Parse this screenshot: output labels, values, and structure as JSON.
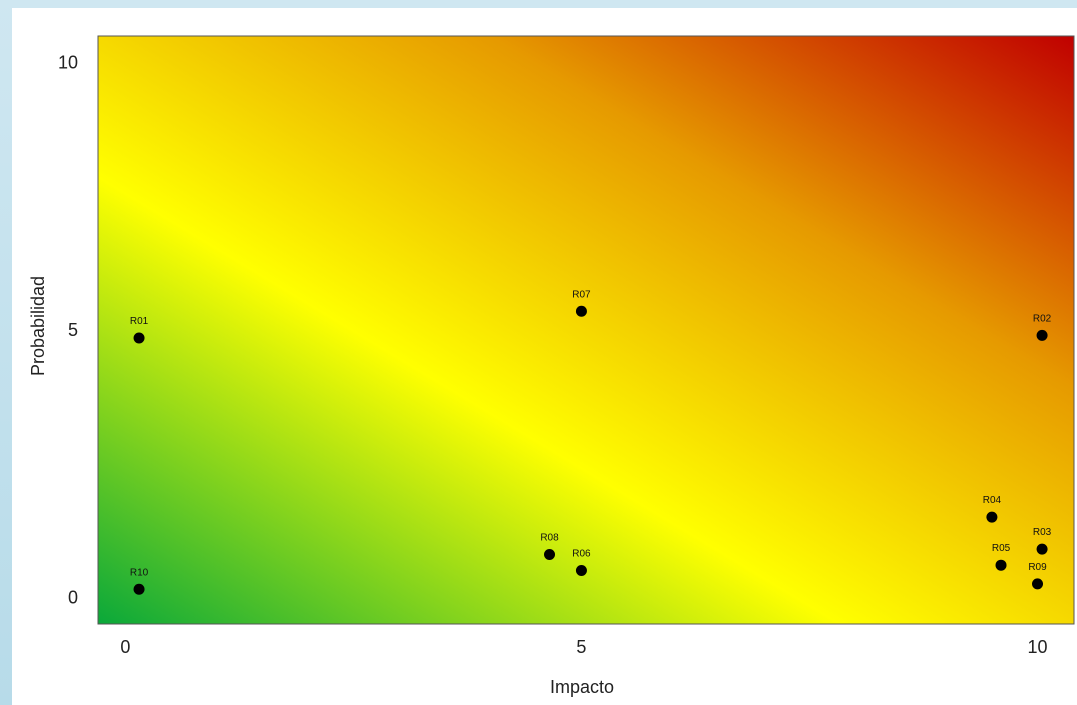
{
  "chart_data": {
    "type": "scatter",
    "title": "",
    "xlabel": "Impacto",
    "ylabel": "Probabilidad",
    "xlim": [
      -0.3,
      10.4
    ],
    "ylim": [
      -0.5,
      10.5
    ],
    "xticks": [
      0,
      5,
      10
    ],
    "yticks": [
      0,
      5,
      10
    ],
    "grid": false,
    "background_gradient": {
      "direction": "bottom-left to top-right",
      "stops": [
        "#0aa83a",
        "#ffff00",
        "#e69a00",
        "#c00000"
      ]
    },
    "point_color": "#000000",
    "points": [
      {
        "label": "R01",
        "x": 0.15,
        "y": 4.85
      },
      {
        "label": "R02",
        "x": 10.05,
        "y": 4.9
      },
      {
        "label": "R03",
        "x": 10.05,
        "y": 0.9
      },
      {
        "label": "R04",
        "x": 9.5,
        "y": 1.5
      },
      {
        "label": "R05",
        "x": 9.6,
        "y": 0.6
      },
      {
        "label": "R06",
        "x": 5.0,
        "y": 0.5
      },
      {
        "label": "R07",
        "x": 5.0,
        "y": 5.35
      },
      {
        "label": "R08",
        "x": 4.65,
        "y": 0.8
      },
      {
        "label": "R09",
        "x": 10.0,
        "y": 0.25
      },
      {
        "label": "R10",
        "x": 0.15,
        "y": 0.15
      }
    ]
  }
}
